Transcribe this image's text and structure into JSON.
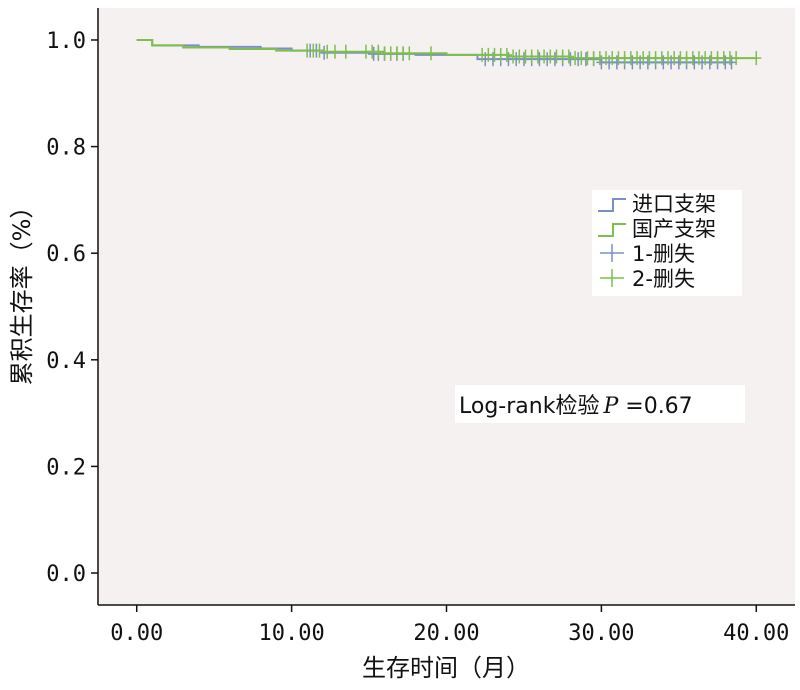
{
  "chart_data": {
    "type": "line",
    "title": "",
    "xlabel": "生存时间（月）",
    "ylabel": "累积生存率（%）",
    "xlim": [
      -2.5,
      42.5
    ],
    "ylim": [
      -0.06,
      1.06
    ],
    "x_ticks": [
      {
        "value": 0,
        "label": "0.00"
      },
      {
        "value": 10,
        "label": "10.00"
      },
      {
        "value": 20,
        "label": "20.00"
      },
      {
        "value": 30,
        "label": "30.00"
      },
      {
        "value": 40,
        "label": "40.00"
      }
    ],
    "y_ticks": [
      {
        "value": 0.0,
        "label": "0.0"
      },
      {
        "value": 0.2,
        "label": "0.2"
      },
      {
        "value": 0.4,
        "label": "0.4"
      },
      {
        "value": 0.6,
        "label": "0.6"
      },
      {
        "value": 0.8,
        "label": "0.8"
      },
      {
        "value": 1.0,
        "label": "1.0"
      }
    ],
    "grid": false,
    "background_color": "#f5f1f0",
    "legend": {
      "placement": "right",
      "entries": [
        {
          "label": "进口支架",
          "kind": "step",
          "color": "#7b8fc7"
        },
        {
          "label": "国产支架",
          "kind": "step",
          "color": "#7dbf4a"
        },
        {
          "label": "1-删失",
          "kind": "censor",
          "color": "#7b8fc7"
        },
        {
          "label": "2-删失",
          "kind": "censor",
          "color": "#7dbf4a"
        }
      ]
    },
    "annotation": {
      "prefix": "Log-rank检验",
      "stat": "P",
      "value": " =0.67"
    },
    "series": [
      {
        "color": "#7b8fc7",
        "step_x": [
          0,
          1,
          4,
          8,
          10,
          12,
          15,
          18,
          22,
          30,
          38.5
        ],
        "step_y": [
          1.0,
          0.99,
          0.987,
          0.984,
          0.98,
          0.976,
          0.974,
          0.972,
          0.964,
          0.958,
          0.958
        ],
        "censored_x": [
          11.2,
          11.6,
          12.1,
          15.3,
          15.6,
          16.0,
          16.4,
          16.8,
          17.2,
          22.5,
          23.0,
          23.5,
          24.0,
          24.5,
          25.0,
          25.5,
          26.0,
          26.5,
          27.0,
          27.5,
          28.0,
          28.5,
          29.0,
          29.5,
          30.0,
          30.5,
          31.0,
          31.5,
          32.0,
          32.5,
          33.0,
          33.5,
          34.0,
          34.5,
          35.0,
          35.5,
          36.0,
          36.5,
          37.0,
          37.5,
          38.0,
          38.4
        ]
      },
      {
        "color": "#7dbf4a",
        "step_x": [
          0,
          1,
          3,
          6,
          9,
          12,
          16,
          20,
          24,
          28,
          40
        ],
        "step_y": [
          1.0,
          0.99,
          0.986,
          0.983,
          0.98,
          0.978,
          0.975,
          0.972,
          0.969,
          0.966,
          0.966
        ],
        "censored_x": [
          11.0,
          11.4,
          11.8,
          12.3,
          12.8,
          13.5,
          14.8,
          15.2,
          15.6,
          16.0,
          16.4,
          16.8,
          17.2,
          17.6,
          19.0,
          22.3,
          22.7,
          23.1,
          23.5,
          23.9,
          24.3,
          24.7,
          25.1,
          25.5,
          25.9,
          26.3,
          26.7,
          27.1,
          27.5,
          27.9,
          28.3,
          28.7,
          29.1,
          29.5,
          29.9,
          30.3,
          30.7,
          31.1,
          31.5,
          31.9,
          32.3,
          32.7,
          33.1,
          33.5,
          33.9,
          34.3,
          34.7,
          35.1,
          35.5,
          35.9,
          36.3,
          36.7,
          37.1,
          37.5,
          37.9,
          38.3,
          38.7,
          40.0
        ]
      }
    ]
  }
}
